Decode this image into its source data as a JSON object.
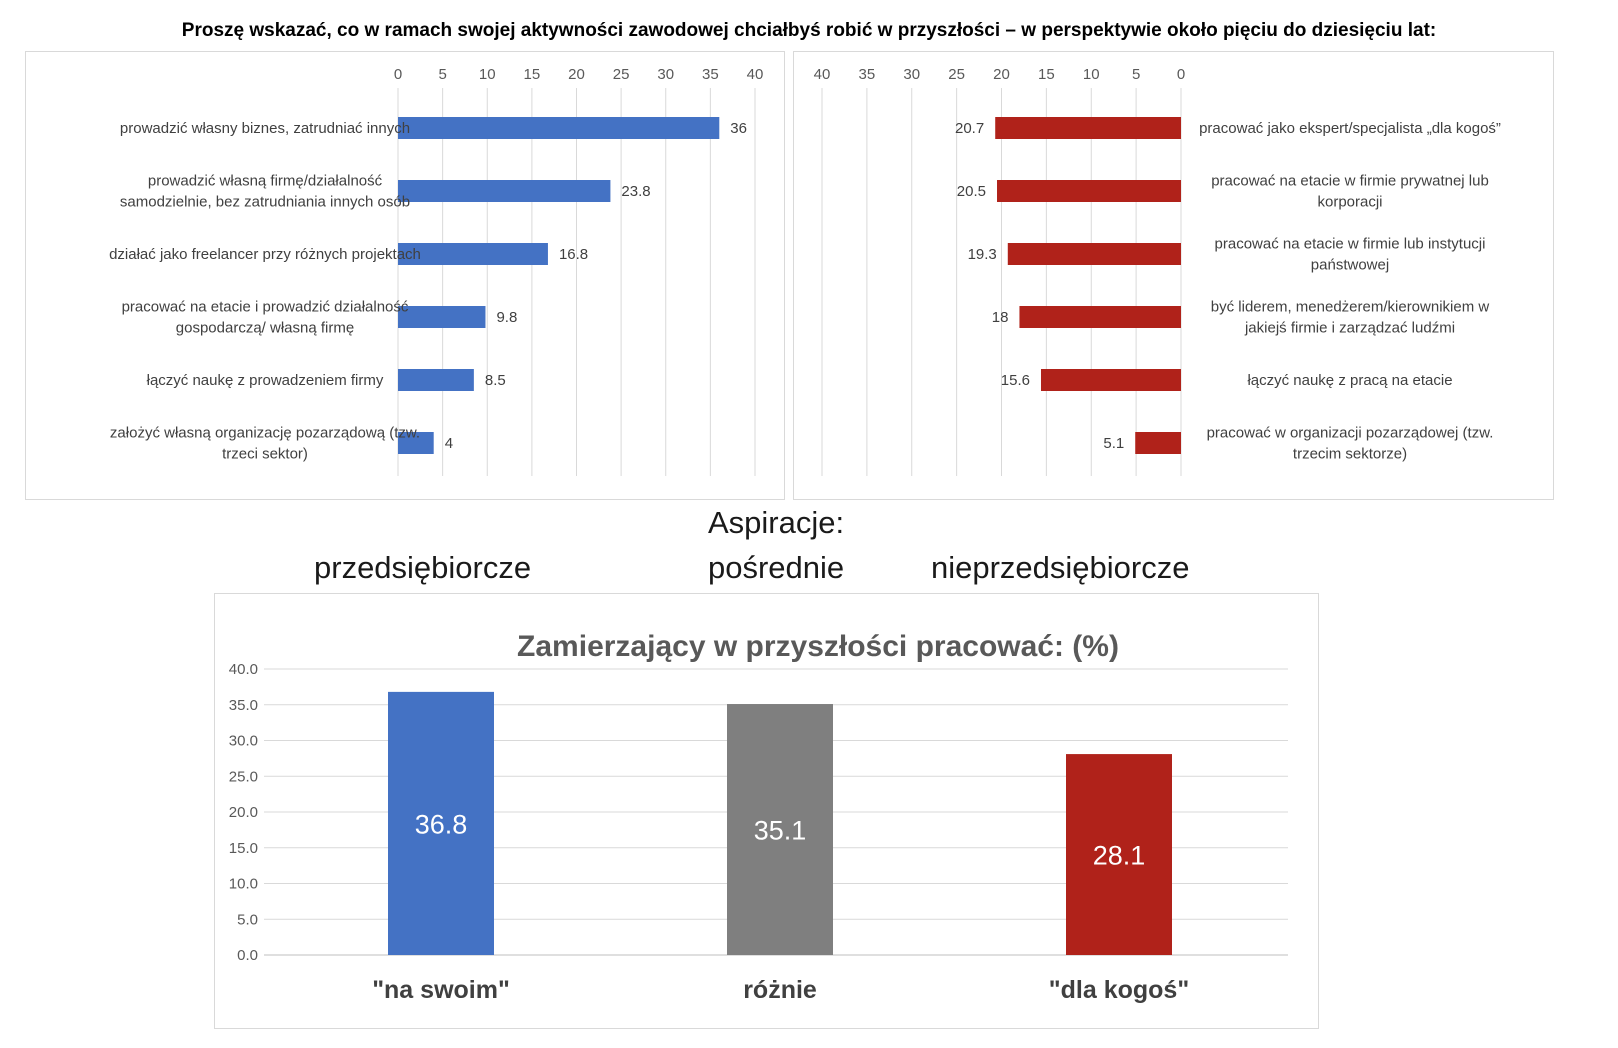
{
  "page": {
    "title": "Proszę wskazać, co w ramach swojej aktywności zawodowej chciałbyś robić w przyszłości – w perspektywie około pięciu do dziesięciu lat:",
    "aspirations_title": "Aspiracje:",
    "aspirations_left": "przedsiębiorcze",
    "aspirations_mid": "pośrednie",
    "aspirations_right": "nieprzedsiębiorcze"
  },
  "chart_data": [
    {
      "type": "bar",
      "orientation": "horizontal",
      "title": "",
      "xlim": [
        0,
        40
      ],
      "ticks": [
        "0",
        "5",
        "10",
        "15",
        "20",
        "25",
        "30",
        "35",
        "40"
      ],
      "tick_values": [
        0,
        5,
        10,
        15,
        20,
        25,
        30,
        35,
        40
      ],
      "grid": true,
      "color": "#4472c4",
      "categories": [
        [
          "prowadzić własny biznes, zatrudniać innych"
        ],
        [
          "prowadzić własną firmę/działalność",
          "samodzielnie, bez zatrudniania innych osób"
        ],
        [
          "działać jako freelancer przy różnych projektach"
        ],
        [
          "pracować na etacie i prowadzić działalność",
          "gospodarczą/ własną firmę"
        ],
        [
          "łączyć naukę z prowadzeniem firmy"
        ],
        [
          "założyć własną organizację pozarządową (tzw.",
          "trzeci sektor)"
        ]
      ],
      "values": [
        36,
        23.8,
        16.8,
        9.8,
        8.5,
        4
      ],
      "labels": [
        "36",
        "23.8",
        "16.8",
        "9.8",
        "8.5",
        "4"
      ]
    },
    {
      "type": "bar",
      "orientation": "horizontal",
      "reversed": true,
      "title": "",
      "xlim": [
        0,
        40
      ],
      "ticks": [
        "40",
        "35",
        "30",
        "25",
        "20",
        "15",
        "10",
        "5",
        "0"
      ],
      "tick_values": [
        40,
        35,
        30,
        25,
        20,
        15,
        10,
        5,
        0
      ],
      "grid": true,
      "color": "#b0221a",
      "categories": [
        [
          "pracować jako ekspert/specjalista „dla kogoś”"
        ],
        [
          "pracować na etacie w firmie prywatnej lub",
          "korporacji"
        ],
        [
          "pracować na etacie w firmie lub instytucji",
          "państwowej"
        ],
        [
          "być liderem, menedżerem/kierownikiem w",
          "jakiejś firmie i zarządzać ludźmi"
        ],
        [
          "łączyć naukę z pracą na etacie"
        ],
        [
          "pracować w organizacji pozarządowej (tzw.",
          "trzecim sektorze)"
        ]
      ],
      "values": [
        20.7,
        20.5,
        19.3,
        18,
        15.6,
        5.1
      ],
      "labels": [
        "20.7",
        "20.5",
        "19.3",
        "18",
        "15.6",
        "5.1"
      ]
    },
    {
      "type": "bar",
      "orientation": "vertical",
      "title": "Zamierzający w przyszłości pracować: (%)",
      "ylim": [
        0,
        40
      ],
      "ticks": [
        "0.0",
        "5.0",
        "10.0",
        "15.0",
        "20.0",
        "25.0",
        "30.0",
        "35.0",
        "40.0"
      ],
      "tick_values": [
        0,
        5,
        10,
        15,
        20,
        25,
        30,
        35,
        40
      ],
      "grid": true,
      "categories": [
        "\"na swoim\"",
        "różnie",
        "\"dla kogoś\""
      ],
      "values": [
        36.8,
        35.1,
        28.1
      ],
      "labels": [
        "36.8",
        "35.1",
        "28.1"
      ],
      "colors": [
        "#4472c4",
        "#7f7f7f",
        "#b0221a"
      ]
    }
  ]
}
